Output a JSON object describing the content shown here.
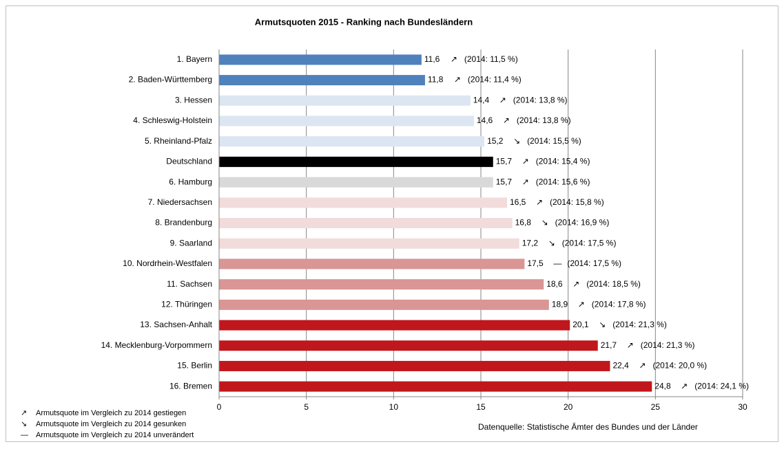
{
  "chart_data": {
    "type": "hbar",
    "title": "Armutsquoten 2015 - Ranking nach Bundesländern",
    "categories": [
      "1. Bayern",
      "2. Baden-Württemberg",
      "3. Hessen",
      "4. Schleswig-Holstein",
      "5. Rheinland-Pfalz",
      "Deutschland",
      "6. Hamburg",
      "7. Niedersachsen",
      "8. Brandenburg",
      "9. Saarland",
      "10. Nordrhein-Westfalen",
      "11. Sachsen",
      "12. Thüringen",
      "13. Sachsen-Anhalt",
      "14. Mecklenburg-Vorpommern",
      "15. Berlin",
      "16. Bremen"
    ],
    "values": [
      11.6,
      11.8,
      14.4,
      14.6,
      15.2,
      15.7,
      15.7,
      16.5,
      16.8,
      17.2,
      17.5,
      18.6,
      18.9,
      20.1,
      21.7,
      22.4,
      24.8
    ],
    "value_labels": [
      "11,6",
      "11,8",
      "14,4",
      "14,6",
      "15,2",
      "15,7",
      "15,7",
      "16,5",
      "16,8",
      "17,2",
      "17,5",
      "18,6",
      "18,9",
      "20,1",
      "21,7",
      "22,4",
      "24,8"
    ],
    "colors": [
      "#4f81bd",
      "#4f81bd",
      "#dce6f2",
      "#dce6f2",
      "#dce6f2",
      "#000000",
      "#d9d9d9",
      "#f2dcdb",
      "#f2dcdb",
      "#f2dcdb",
      "#d99694",
      "#d99694",
      "#d99694",
      "#c0171c",
      "#c0171c",
      "#c0171c",
      "#c0171c"
    ],
    "trends": [
      "↗",
      "↗",
      "↗",
      "↗",
      "↘",
      "↗",
      "↗",
      "↗",
      "↘",
      "↘",
      "—",
      "↗",
      "↗",
      "↘",
      "↗",
      "↗",
      "↗"
    ],
    "annotations": [
      "(2014: 11,5 %)",
      "(2014: 11,4 %)",
      "(2014: 13,8 %)",
      "(2014: 13,8 %)",
      "(2014: 15,5 %)",
      "(2014: 15,4 %)",
      "(2014: 15,6 %)",
      "(2014: 15,8 %)",
      "(2014: 16,9 %)",
      "(2014: 17,5 %)",
      "(2014: 17,5 %)",
      "(2014: 18,5 %)",
      "(2014: 17,8 %)",
      "(2014: 21,3 %)",
      "(2014: 21,3 %)",
      "(2014: 20,0 %)",
      "(2014: 24,1 %)"
    ],
    "xlim": [
      0,
      30
    ],
    "xticks": [
      0,
      5,
      10,
      15,
      20,
      25,
      30
    ],
    "grid": true,
    "legend": [
      {
        "symbol": "↗",
        "color": "#c00000",
        "label": "Armutsquote im Vergleich zu 2014 gestiegen"
      },
      {
        "symbol": "↘",
        "color": "#1f77b4",
        "label": "Armutsquote im Vergleich zu 2014 gesunken"
      },
      {
        "symbol": "—",
        "color": "#2ca02c",
        "label": "Armutsquote im Vergleich zu 2014 unverändert"
      }
    ],
    "source": "Datenquelle:  Statistische Ämter des Bundes und der Länder"
  }
}
